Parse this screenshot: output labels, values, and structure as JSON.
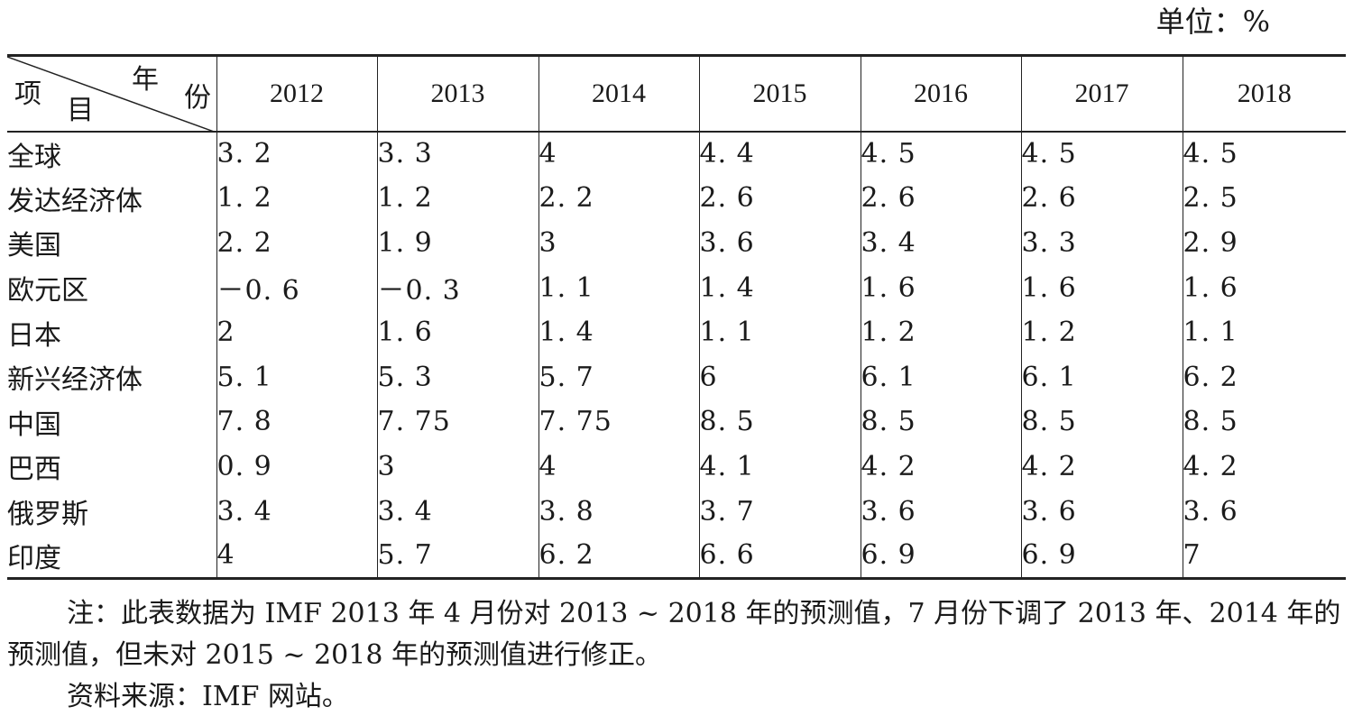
{
  "unit_label": "单位：%",
  "header": {
    "corner_year_chars": [
      "年",
      "份"
    ],
    "corner_item_chars": [
      "项",
      "目"
    ],
    "years": [
      "2012",
      "2013",
      "2014",
      "2015",
      "2016",
      "2017",
      "2018"
    ]
  },
  "rows": [
    {
      "label": "全球",
      "values": [
        "3. 2",
        "3. 3",
        "4",
        "4. 4",
        "4. 5",
        "4. 5",
        "4. 5"
      ]
    },
    {
      "label": "发达经济体",
      "values": [
        "1. 2",
        "1. 2",
        "2. 2",
        "2. 6",
        "2. 6",
        "2. 6",
        "2. 5"
      ]
    },
    {
      "label": "美国",
      "values": [
        "2. 2",
        "1. 9",
        "3",
        "3. 6",
        "3. 4",
        "3. 3",
        "2. 9"
      ]
    },
    {
      "label": "欧元区",
      "values": [
        "－0. 6",
        "－0. 3",
        "1. 1",
        "1. 4",
        "1. 6",
        "1. 6",
        "1. 6"
      ]
    },
    {
      "label": "日本",
      "values": [
        "2",
        "1. 6",
        "1. 4",
        "1. 1",
        "1. 2",
        "1. 2",
        "1. 1"
      ]
    },
    {
      "label": "新兴经济体",
      "values": [
        "5. 1",
        "5. 3",
        "5. 7",
        "6",
        "6. 1",
        "6. 1",
        "6. 2"
      ]
    },
    {
      "label": "中国",
      "values": [
        "7. 8",
        "7. 75",
        "7. 75",
        "8. 5",
        "8. 5",
        "8. 5",
        "8. 5"
      ]
    },
    {
      "label": "巴西",
      "values": [
        "0. 9",
        "3",
        "4",
        "4. 1",
        "4. 2",
        "4. 2",
        "4. 2"
      ]
    },
    {
      "label": "俄罗斯",
      "values": [
        "3. 4",
        "3. 4",
        "3. 8",
        "3. 7",
        "3. 6",
        "3. 6",
        "3. 6"
      ]
    },
    {
      "label": "印度",
      "values": [
        "4",
        "5. 7",
        "6. 2",
        "6. 6",
        "6. 9",
        "6. 9",
        "7"
      ]
    }
  ],
  "notes": {
    "note": "注：此表数据为 IMF 2013 年 4 月份对 2013 ~ 2018 年的预测值，7 月份下调了 2013 年、2014 年的预测值，但未对 2015 ~ 2018 年的预测值进行修正。",
    "source": "资料来源：IMF 网站。"
  }
}
